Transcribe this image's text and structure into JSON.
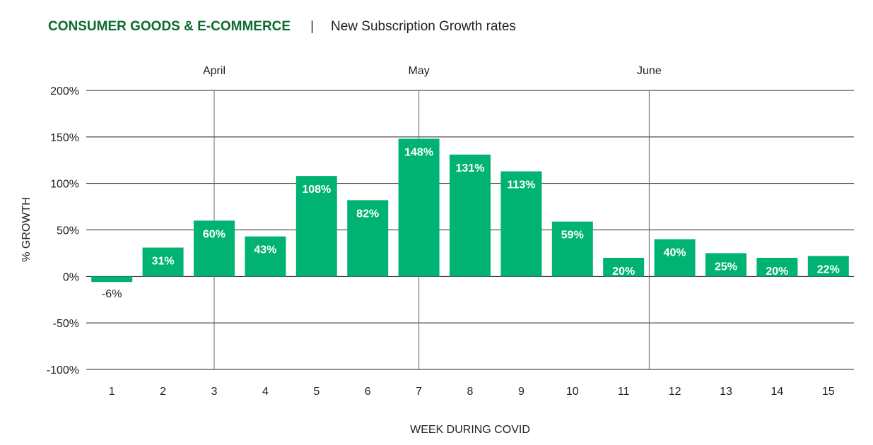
{
  "header": {
    "title": "CONSUMER GOODS & E-COMMERCE",
    "separator": "|",
    "subtitle": "New Subscription Growth rates"
  },
  "chart_data": {
    "type": "bar",
    "xlabel": "WEEK DURING COVID",
    "ylabel": "% GROWTH",
    "categories": [
      "1",
      "2",
      "3",
      "4",
      "5",
      "6",
      "7",
      "8",
      "9",
      "10",
      "11",
      "12",
      "13",
      "14",
      "15"
    ],
    "values": [
      -6,
      31,
      60,
      43,
      108,
      82,
      148,
      131,
      113,
      59,
      20,
      40,
      25,
      20,
      22
    ],
    "data_labels": [
      "-6%",
      "31%",
      "60%",
      "43%",
      "108%",
      "82%",
      "148%",
      "131%",
      "113%",
      "59%",
      "20%",
      "40%",
      "25%",
      "20%",
      "22%"
    ],
    "ylim": [
      -100,
      200
    ],
    "yticks": [
      200,
      150,
      100,
      50,
      0,
      -50,
      -100
    ],
    "ytick_labels": [
      "200%",
      "150%",
      "100%",
      "50%",
      "0%",
      "-50%",
      "-100%"
    ],
    "grid": true,
    "month_markers": [
      {
        "label": "April",
        "at_week": 3
      },
      {
        "label": "May",
        "at_week": 7
      },
      {
        "label": "June",
        "at_week": 11.5
      }
    ],
    "bar_color": "#00b373"
  }
}
